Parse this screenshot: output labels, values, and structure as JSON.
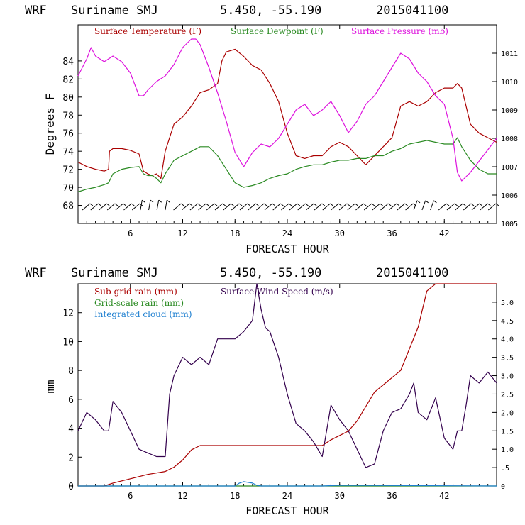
{
  "chart_data": [
    {
      "type": "line",
      "header": {
        "model": "WRF",
        "station": "Suriname SMJ",
        "coords": "5.450, -55.190",
        "init": "2015041100"
      },
      "xlabel": "FORECAST HOUR",
      "ylabel": "Degrees F",
      "xlim": [
        0,
        48
      ],
      "ylim": [
        66,
        88
      ],
      "y2lim": [
        1005,
        1012
      ],
      "xticks": [
        "6",
        "12",
        "18",
        "24",
        "30",
        "36",
        "42"
      ],
      "yticks": [
        "68",
        "70",
        "72",
        "74",
        "76",
        "78",
        "80",
        "82",
        "84"
      ],
      "y2ticks": [
        "1005",
        "1006",
        "1007",
        "1008",
        "1009",
        "1010",
        "1011"
      ],
      "series": [
        {
          "name": "Surface Temperature (F)",
          "color": "#aa0000",
          "axis": "left",
          "x": [
            0,
            1,
            2,
            3,
            3.5,
            3.6,
            4,
            5,
            6,
            7,
            7.5,
            8,
            8.5,
            9,
            9.5,
            10,
            11,
            12,
            13,
            14,
            15,
            16,
            16.5,
            17,
            18,
            19,
            20,
            21,
            22,
            23,
            24,
            25,
            26,
            27,
            28,
            29,
            30,
            31,
            32,
            33,
            34,
            35,
            36,
            37,
            38,
            39,
            40,
            41,
            42,
            43,
            43.5,
            44,
            45,
            46,
            47,
            48
          ],
          "y": [
            72.8,
            72.3,
            72.0,
            71.8,
            72.0,
            74.0,
            74.3,
            74.3,
            74.1,
            73.7,
            71.8,
            71.5,
            71.3,
            71.5,
            71.0,
            74.0,
            77.0,
            77.8,
            79.0,
            80.5,
            80.8,
            81.5,
            84.0,
            85.0,
            85.3,
            84.5,
            83.5,
            83.0,
            81.5,
            79.5,
            76.0,
            73.5,
            73.2,
            73.5,
            73.5,
            74.5,
            75.0,
            74.5,
            73.5,
            72.5,
            73.5,
            74.5,
            75.5,
            79.0,
            79.5,
            79.0,
            79.5,
            80.5,
            81.0,
            81.0,
            81.5,
            81.0,
            77.0,
            76.0,
            75.5,
            75.0
          ]
        },
        {
          "name": "Surface Dewpoint (F)",
          "color": "#2a8a22",
          "axis": "left",
          "x": [
            0,
            1,
            2,
            3,
            3.5,
            4,
            5,
            6,
            7,
            7.5,
            8,
            8.5,
            9,
            9.5,
            10,
            11,
            12,
            13,
            14,
            15,
            16,
            17,
            18,
            19,
            20,
            21,
            22,
            23,
            24,
            25,
            26,
            27,
            28,
            29,
            30,
            31,
            32,
            33,
            34,
            35,
            36,
            37,
            38,
            39,
            40,
            41,
            42,
            43,
            43.5,
            44,
            45,
            46,
            47,
            48
          ],
          "y": [
            69.5,
            69.8,
            70.0,
            70.3,
            70.5,
            71.5,
            72.0,
            72.2,
            72.3,
            71.5,
            71.3,
            71.3,
            71.0,
            70.5,
            71.5,
            73.0,
            73.5,
            74.0,
            74.5,
            74.5,
            73.5,
            72.0,
            70.5,
            70.0,
            70.2,
            70.5,
            71.0,
            71.3,
            71.5,
            72.0,
            72.3,
            72.5,
            72.5,
            72.8,
            73.0,
            73.0,
            73.2,
            73.2,
            73.5,
            73.5,
            74.0,
            74.3,
            74.8,
            75.0,
            75.2,
            75.0,
            74.8,
            74.8,
            75.5,
            74.5,
            73.0,
            72.0,
            71.5,
            71.5
          ]
        },
        {
          "name": "Surface Pressure (mb)",
          "color": "#dd11dd",
          "axis": "right",
          "x": [
            0,
            1,
            1.5,
            2,
            3,
            4,
            5,
            6,
            7,
            7.5,
            8,
            9,
            10,
            11,
            12,
            13,
            13.5,
            14,
            15,
            16,
            17,
            18,
            19,
            20,
            21,
            22,
            23,
            24,
            25,
            26,
            27,
            28,
            29,
            30,
            31,
            32,
            33,
            34,
            35,
            36,
            37,
            38,
            39,
            40,
            41,
            42,
            43,
            43.5,
            44,
            45,
            46,
            47,
            48
          ],
          "y": [
            1010.2,
            1010.8,
            1011.2,
            1010.9,
            1010.7,
            1010.9,
            1010.7,
            1010.3,
            1009.5,
            1009.5,
            1009.7,
            1010.0,
            1010.2,
            1010.6,
            1011.2,
            1011.5,
            1011.5,
            1011.3,
            1010.5,
            1009.6,
            1008.6,
            1007.5,
            1007.0,
            1007.5,
            1007.8,
            1007.7,
            1008.0,
            1008.5,
            1009.0,
            1009.2,
            1008.8,
            1009.0,
            1009.3,
            1008.8,
            1008.2,
            1008.6,
            1009.2,
            1009.5,
            1010.0,
            1010.5,
            1011.0,
            1010.8,
            1010.3,
            1010.0,
            1009.5,
            1009.2,
            1008.0,
            1006.8,
            1006.5,
            1006.8,
            1007.2,
            1007.6,
            1008.0
          ]
        }
      ]
    },
    {
      "type": "line",
      "header": {
        "model": "WRF",
        "station": "Suriname SMJ",
        "coords": "5.450, -55.190",
        "init": "2015041100"
      },
      "xlabel": "FORECAST HOUR",
      "ylabel": "mm",
      "xlim": [
        0,
        48
      ],
      "ylim": [
        0,
        14
      ],
      "y2lim": [
        0,
        5.5
      ],
      "xticks": [
        "6",
        "12",
        "18",
        "24",
        "30",
        "36",
        "42"
      ],
      "yticks": [
        "0",
        "2",
        "4",
        "6",
        "8",
        "10",
        "12"
      ],
      "y2ticks": [
        "0",
        ".5",
        "1.0",
        "1.5",
        "2.0",
        "2.5",
        "3.0",
        "3.5",
        "4.0",
        "4.5",
        "5.0"
      ],
      "series": [
        {
          "name": "Sub-grid rain (mm)",
          "color": "#aa0000",
          "axis": "left",
          "x": [
            0,
            3,
            4,
            6,
            8,
            10,
            11,
            12,
            13,
            14,
            15,
            20,
            25,
            28,
            29,
            30,
            31,
            32,
            33,
            34,
            35,
            36,
            37,
            38,
            39,
            40,
            41,
            42,
            48
          ],
          "y": [
            0,
            0,
            0.2,
            0.5,
            0.8,
            1.0,
            1.3,
            1.8,
            2.5,
            2.8,
            2.8,
            2.8,
            2.8,
            2.8,
            3.2,
            3.5,
            3.8,
            4.5,
            5.5,
            6.5,
            7.0,
            7.5,
            8.0,
            9.5,
            11.0,
            13.5,
            14.0,
            14.0,
            14.0
          ]
        },
        {
          "name": "Grid-scale rain (mm)",
          "color": "#2a8a22",
          "axis": "left",
          "x": [
            0,
            48
          ],
          "y": [
            0,
            0
          ]
        },
        {
          "name": "Integrated cloud (mm)",
          "color": "#1e7fd0",
          "axis": "left",
          "x": [
            0,
            18,
            18.5,
            19,
            20,
            20.5,
            21,
            28,
            30,
            48
          ],
          "y": [
            0,
            0,
            0.2,
            0.3,
            0.2,
            0.05,
            0,
            0,
            0.05,
            0
          ]
        },
        {
          "name": "Surface Wind Speed (m/s)",
          "color": "#33004d",
          "axis": "right",
          "x": [
            0,
            1,
            2,
            3,
            3.5,
            4,
            5,
            6,
            7,
            8,
            9,
            10,
            10.5,
            11,
            12,
            13,
            14,
            15,
            16,
            17,
            18,
            19,
            20,
            20.5,
            21,
            21.5,
            22,
            23,
            24,
            25,
            26,
            27,
            28,
            29,
            30,
            31,
            32,
            33,
            34,
            35,
            36,
            37,
            38,
            38.5,
            39,
            40,
            41,
            42,
            43,
            43.5,
            44,
            44.5,
            45,
            46,
            47,
            48
          ],
          "y": [
            1.5,
            2.0,
            1.8,
            1.5,
            1.5,
            2.3,
            2.0,
            1.5,
            1.0,
            0.9,
            0.8,
            0.8,
            2.5,
            3.0,
            3.5,
            3.3,
            3.5,
            3.3,
            4.0,
            4.0,
            4.0,
            4.2,
            4.5,
            5.5,
            4.8,
            4.3,
            4.2,
            3.5,
            2.5,
            1.7,
            1.5,
            1.2,
            0.8,
            2.2,
            1.8,
            1.5,
            1.0,
            0.5,
            0.6,
            1.5,
            2.0,
            2.1,
            2.5,
            2.8,
            2.0,
            1.8,
            2.4,
            1.3,
            1.0,
            1.5,
            1.5,
            2.2,
            3.0,
            2.8,
            3.1,
            2.8
          ]
        }
      ]
    }
  ]
}
